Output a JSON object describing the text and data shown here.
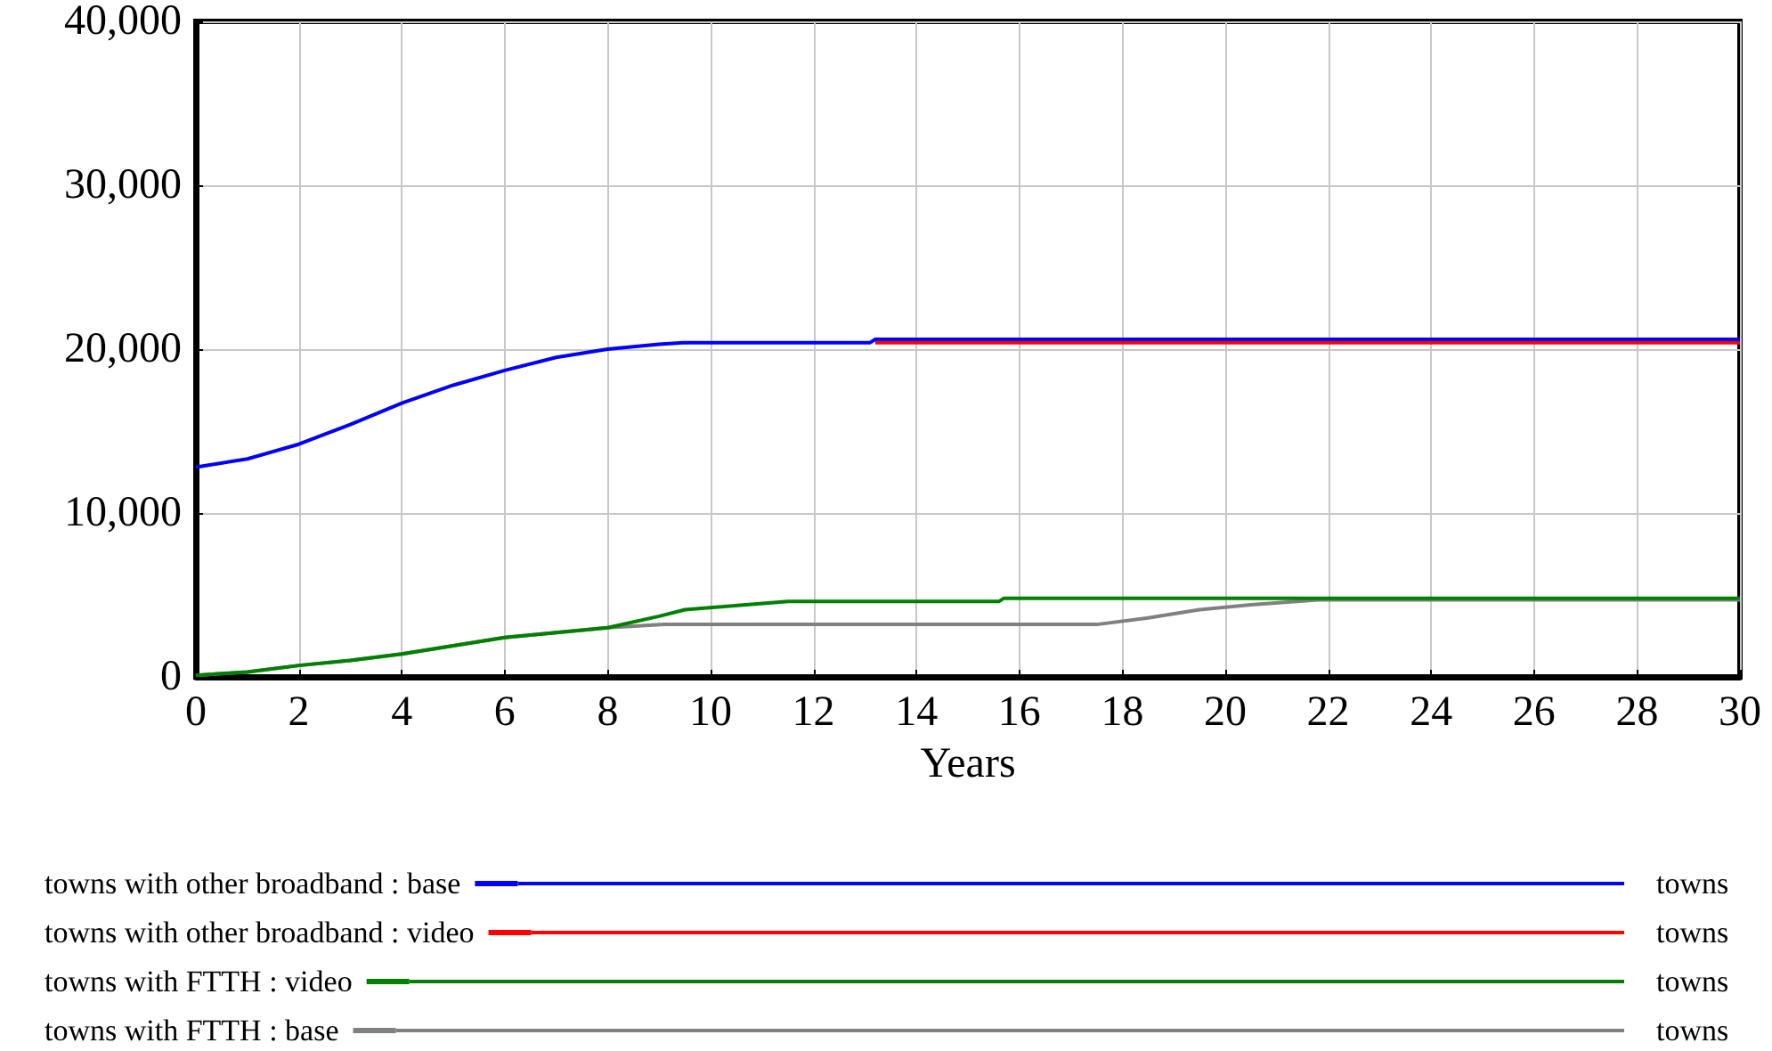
{
  "chart_data": {
    "type": "line",
    "xlabel": "Years",
    "xlim": [
      0,
      30
    ],
    "xticks": [
      0,
      2,
      4,
      6,
      8,
      10,
      12,
      14,
      16,
      18,
      20,
      22,
      24,
      26,
      28,
      30
    ],
    "ylim": [
      0,
      40000
    ],
    "yticks": [
      0,
      {
        "value": 10000,
        "label": "10,000"
      },
      {
        "value": 20000,
        "label": "20,000"
      },
      {
        "value": 30000,
        "label": "30,000"
      },
      {
        "value": 40000,
        "label": "40,000"
      }
    ],
    "grid": true,
    "legend": "bottom",
    "marker": "none",
    "line_style": "solid",
    "annotations": [
      "towns",
      "towns",
      "towns",
      "towns"
    ],
    "series": [
      {
        "name": "towns with other broadband : base",
        "color": "#0000ff",
        "x": [
          0,
          1,
          2,
          3,
          4,
          5,
          6,
          7,
          8,
          9,
          9.5,
          13.1,
          13.2,
          30
        ],
        "values": [
          12800,
          13300,
          14200,
          15400,
          16700,
          17800,
          18700,
          19500,
          20000,
          20300,
          20400,
          20400,
          20600,
          20600
        ]
      },
      {
        "name": "towns with other broadband : video",
        "color": "#ff0000",
        "x": [
          13.2,
          30
        ],
        "values": [
          20400,
          20400
        ]
      },
      {
        "name": "towns with FTTH : video",
        "color": "#008000",
        "x": [
          0,
          1,
          2,
          3,
          4,
          5,
          6,
          7,
          8,
          9,
          9.5,
          11.5,
          15.6,
          15.7,
          30
        ],
        "values": [
          100,
          300,
          700,
          1000,
          1400,
          1900,
          2400,
          2700,
          3000,
          3700,
          4100,
          4600,
          4600,
          4800,
          4800
        ]
      },
      {
        "name": "towns with FTTH : base",
        "color": "#808080",
        "x": [
          0,
          1,
          2,
          3,
          4,
          5,
          6,
          7,
          8,
          9.1,
          17.5,
          18.5,
          19.5,
          20.5,
          21.8,
          30
        ],
        "values": [
          100,
          300,
          700,
          1000,
          1400,
          1900,
          2400,
          2700,
          3000,
          3200,
          3200,
          3600,
          4100,
          4400,
          4700,
          4700
        ]
      }
    ]
  }
}
